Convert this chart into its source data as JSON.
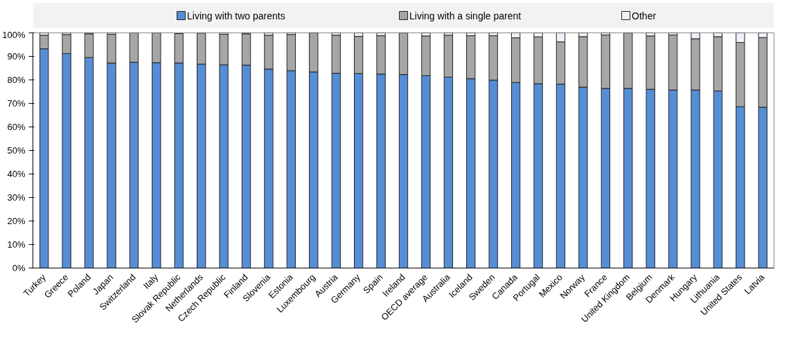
{
  "chart_data": {
    "type": "bar",
    "stacked": true,
    "categories": [
      "Turkey",
      "Greece",
      "Poland",
      "Japan",
      "Switzerland",
      "Italy",
      "Slovak Republic",
      "Netherlands",
      "Czech Republic",
      "Finland",
      "Slovenia",
      "Estonia",
      "Luxembourg",
      "Austria",
      "Germany",
      "Spain",
      "Ireland",
      "OECD average",
      "Australia",
      "Iceland",
      "Sweden",
      "Canada",
      "Portugal",
      "Mexico",
      "Norway",
      "France",
      "United Kingdom",
      "Belgium",
      "Denmark",
      "Hungary",
      "Lithuania",
      "United States",
      "Latvia"
    ],
    "series": [
      {
        "name": "Living with two parents",
        "color": "#558ed5",
        "values": [
          93.2,
          91.2,
          89.5,
          87.2,
          87.5,
          87.3,
          87.2,
          86.7,
          86.4,
          86.3,
          84.6,
          83.9,
          83.4,
          82.8,
          82.7,
          82.5,
          82.3,
          81.8,
          81.2,
          80.5,
          79.9,
          78.9,
          78.4,
          78.2,
          76.9,
          76.4,
          76.4,
          76.0,
          75.7,
          75.7,
          75.3,
          68.6,
          68.4
        ]
      },
      {
        "name": "Living with a single parent",
        "color": "#a6a6a6",
        "values": [
          5.8,
          8.1,
          10.1,
          12.2,
          12.5,
          12.7,
          12.5,
          13.2,
          13.0,
          13.3,
          14.4,
          15.4,
          16.6,
          16.2,
          15.8,
          16.3,
          17.7,
          16.9,
          17.8,
          18.3,
          18.9,
          19.0,
          19.9,
          18.0,
          21.5,
          22.7,
          23.6,
          22.7,
          23.4,
          21.8,
          23.1,
          27.3,
          29.6
        ]
      },
      {
        "name": "Other",
        "color": "#eef1fa",
        "values": [
          1.0,
          0.7,
          0.4,
          0.6,
          0,
          0,
          null,
          null,
          0.6,
          0.4,
          1.0,
          0.7,
          0,
          1.0,
          1.5,
          1.2,
          0,
          1.3,
          1.0,
          1.2,
          1.2,
          2.1,
          1.7,
          3.8,
          1.6,
          0.9,
          0,
          1.3,
          0.9,
          2.5,
          1.6,
          4.1,
          2.0
        ]
      }
    ],
    "ylim": [
      0,
      100
    ],
    "yticks": [
      {
        "value": 0,
        "label": "0%"
      },
      {
        "value": 10,
        "label": "10%"
      },
      {
        "value": 20,
        "label": "20%"
      },
      {
        "value": 30,
        "label": "30%"
      },
      {
        "value": 40,
        "label": "40%"
      },
      {
        "value": 50,
        "label": "50%"
      },
      {
        "value": 60,
        "label": "60%"
      },
      {
        "value": 70,
        "label": "70%"
      },
      {
        "value": 80,
        "label": "80%"
      },
      {
        "value": 90,
        "label": "90%"
      },
      {
        "value": 100,
        "label": "100%"
      }
    ],
    "grid": false,
    "legend": "top"
  }
}
